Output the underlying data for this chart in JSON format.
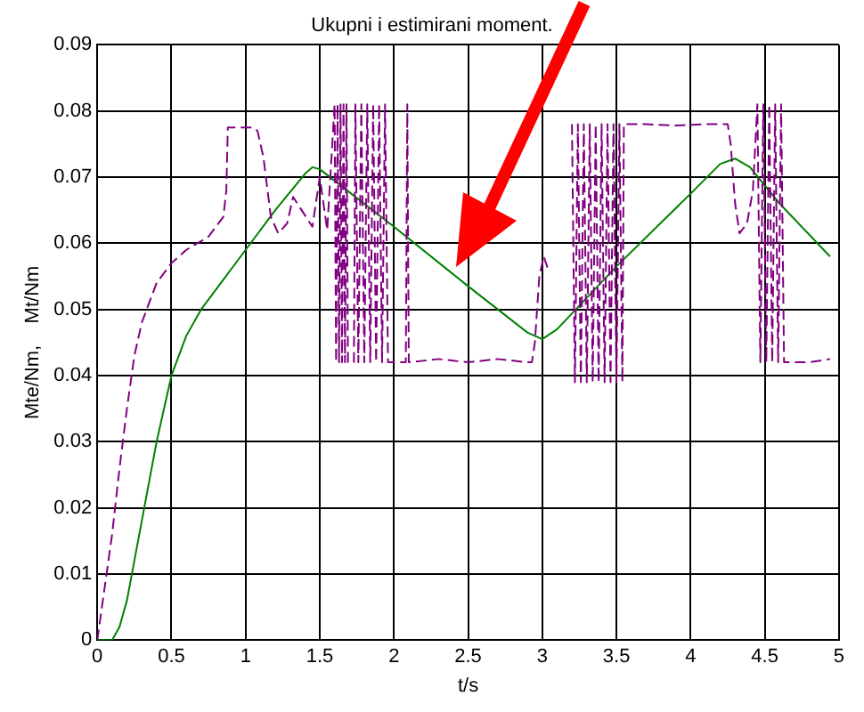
{
  "chart_data": {
    "type": "line",
    "title": "Ukupni i estimirani moment.",
    "xlabel": "t/s",
    "ylabel": "Mte/Nm,    Mt/Nm",
    "xlim": [
      0,
      5
    ],
    "xticks": [
      0,
      0.5,
      1,
      1.5,
      2,
      2.5,
      3,
      3.5,
      4,
      4.5,
      5
    ],
    "ylim": [
      0,
      0.09
    ],
    "yticks": [
      0,
      0.01,
      0.02,
      0.03,
      0.04,
      0.05,
      0.06,
      0.07,
      0.08,
      0.09
    ],
    "grid": true,
    "legend": false,
    "marker": "none",
    "series": [
      {
        "color": "#800080",
        "line_style": "dashed",
        "x": [
          0,
          0.05,
          0.1,
          0.15,
          0.2,
          0.25,
          0.3,
          0.4,
          0.5,
          0.6,
          0.75,
          0.85,
          0.87,
          0.88,
          0.95,
          1.0,
          1.05,
          1.08,
          1.12,
          1.17,
          1.22,
          1.28,
          1.32,
          1.45,
          1.5,
          1.55,
          1.6,
          1.61,
          1.62,
          1.63,
          1.64,
          1.65,
          1.66,
          1.67,
          1.68,
          1.69,
          1.73,
          1.74,
          1.76,
          1.78,
          1.8,
          1.82,
          1.84,
          1.86,
          1.88,
          1.9,
          1.92,
          1.94,
          1.96,
          2.0,
          2.08,
          2.09,
          2.1,
          2.3,
          2.5,
          2.7,
          2.9,
          2.93,
          2.95,
          2.98,
          3.01,
          3.04,
          3.05,
          3.2,
          3.22,
          3.24,
          3.26,
          3.28,
          3.3,
          3.32,
          3.34,
          3.36,
          3.38,
          3.4,
          3.42,
          3.44,
          3.46,
          3.48,
          3.5,
          3.52,
          3.54,
          3.55,
          3.7,
          3.9,
          4.1,
          4.25,
          4.27,
          4.3,
          4.33,
          4.38,
          4.42,
          4.45,
          4.47,
          4.49,
          4.51,
          4.53,
          4.55,
          4.57,
          4.59,
          4.61,
          4.63,
          4.8,
          4.94
        ],
        "values": [
          0,
          0.008,
          0.016,
          0.026,
          0.035,
          0.043,
          0.048,
          0.054,
          0.057,
          0.059,
          0.061,
          0.064,
          0.068,
          0.0775,
          0.0775,
          0.0775,
          0.0775,
          0.077,
          0.073,
          0.064,
          0.0615,
          0.063,
          0.067,
          0.0625,
          0.07,
          0.062,
          0.081,
          0.042,
          0.081,
          0.042,
          0.081,
          0.042,
          0.081,
          0.042,
          0.081,
          0.042,
          0.042,
          0.081,
          0.042,
          0.081,
          0.042,
          0.081,
          0.042,
          0.081,
          0.042,
          0.081,
          0.042,
          0.081,
          0.042,
          0.042,
          0.042,
          0.081,
          0.042,
          0.0425,
          0.042,
          0.0425,
          0.042,
          0.042,
          0.045,
          0.055,
          0.058,
          0.056,
          null,
          0.078,
          0.039,
          0.078,
          0.039,
          0.078,
          0.039,
          0.078,
          0.039,
          0.078,
          0.039,
          0.078,
          0.039,
          0.078,
          0.039,
          0.078,
          0.039,
          0.078,
          0.039,
          0.078,
          0.078,
          0.0778,
          0.078,
          0.078,
          0.075,
          0.066,
          0.0615,
          0.063,
          0.068,
          0.081,
          0.042,
          0.081,
          0.042,
          0.081,
          0.042,
          0.081,
          0.042,
          0.081,
          0.042,
          0.042,
          0.0425
        ]
      },
      {
        "color": "#008000",
        "line_style": "solid",
        "x": [
          0,
          0.1,
          0.15,
          0.2,
          0.3,
          0.4,
          0.5,
          0.6,
          0.7,
          0.8,
          1.0,
          1.2,
          1.4,
          1.45,
          1.5,
          2.0,
          2.5,
          2.9,
          3.0,
          3.1,
          3.5,
          4.0,
          4.2,
          4.3,
          4.4,
          4.6,
          4.94
        ],
        "values": [
          0,
          0,
          0.002,
          0.006,
          0.018,
          0.03,
          0.04,
          0.046,
          0.05,
          0.053,
          0.059,
          0.065,
          0.0705,
          0.0715,
          0.0712,
          0.0625,
          0.0535,
          0.0465,
          0.0455,
          0.047,
          0.0565,
          0.0675,
          0.072,
          0.0728,
          0.0715,
          0.066,
          0.058
        ]
      }
    ]
  }
}
